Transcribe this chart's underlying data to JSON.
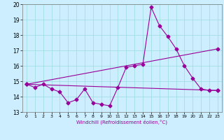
{
  "xlabel": "Windchill (Refroidissement éolien,°C)",
  "background_color": "#cceeff",
  "grid_color": "#99dddd",
  "line_color": "#990099",
  "xlim": [
    -0.5,
    23.5
  ],
  "ylim": [
    13,
    20
  ],
  "xticks": [
    0,
    1,
    2,
    3,
    4,
    5,
    6,
    7,
    8,
    9,
    10,
    11,
    12,
    13,
    14,
    15,
    16,
    17,
    18,
    19,
    20,
    21,
    22,
    23
  ],
  "yticks": [
    13,
    14,
    15,
    16,
    17,
    18,
    19,
    20
  ],
  "line1_x": [
    0,
    1,
    2,
    3,
    4,
    5,
    6,
    7,
    8,
    9,
    10,
    11,
    12,
    13,
    14,
    15,
    16,
    17,
    18,
    19,
    20,
    21,
    22,
    23
  ],
  "line1_y": [
    14.8,
    14.6,
    14.8,
    14.5,
    14.3,
    13.6,
    13.8,
    14.5,
    13.6,
    13.5,
    13.4,
    14.6,
    15.9,
    16.0,
    16.1,
    19.8,
    18.6,
    17.9,
    17.1,
    16.0,
    15.2,
    14.5,
    14.4,
    14.4
  ],
  "line2_x": [
    0,
    23
  ],
  "line2_y": [
    14.8,
    14.4
  ],
  "line3_x": [
    0,
    23
  ],
  "line3_y": [
    14.8,
    17.1
  ],
  "markersize": 2.5,
  "linewidth": 0.8
}
